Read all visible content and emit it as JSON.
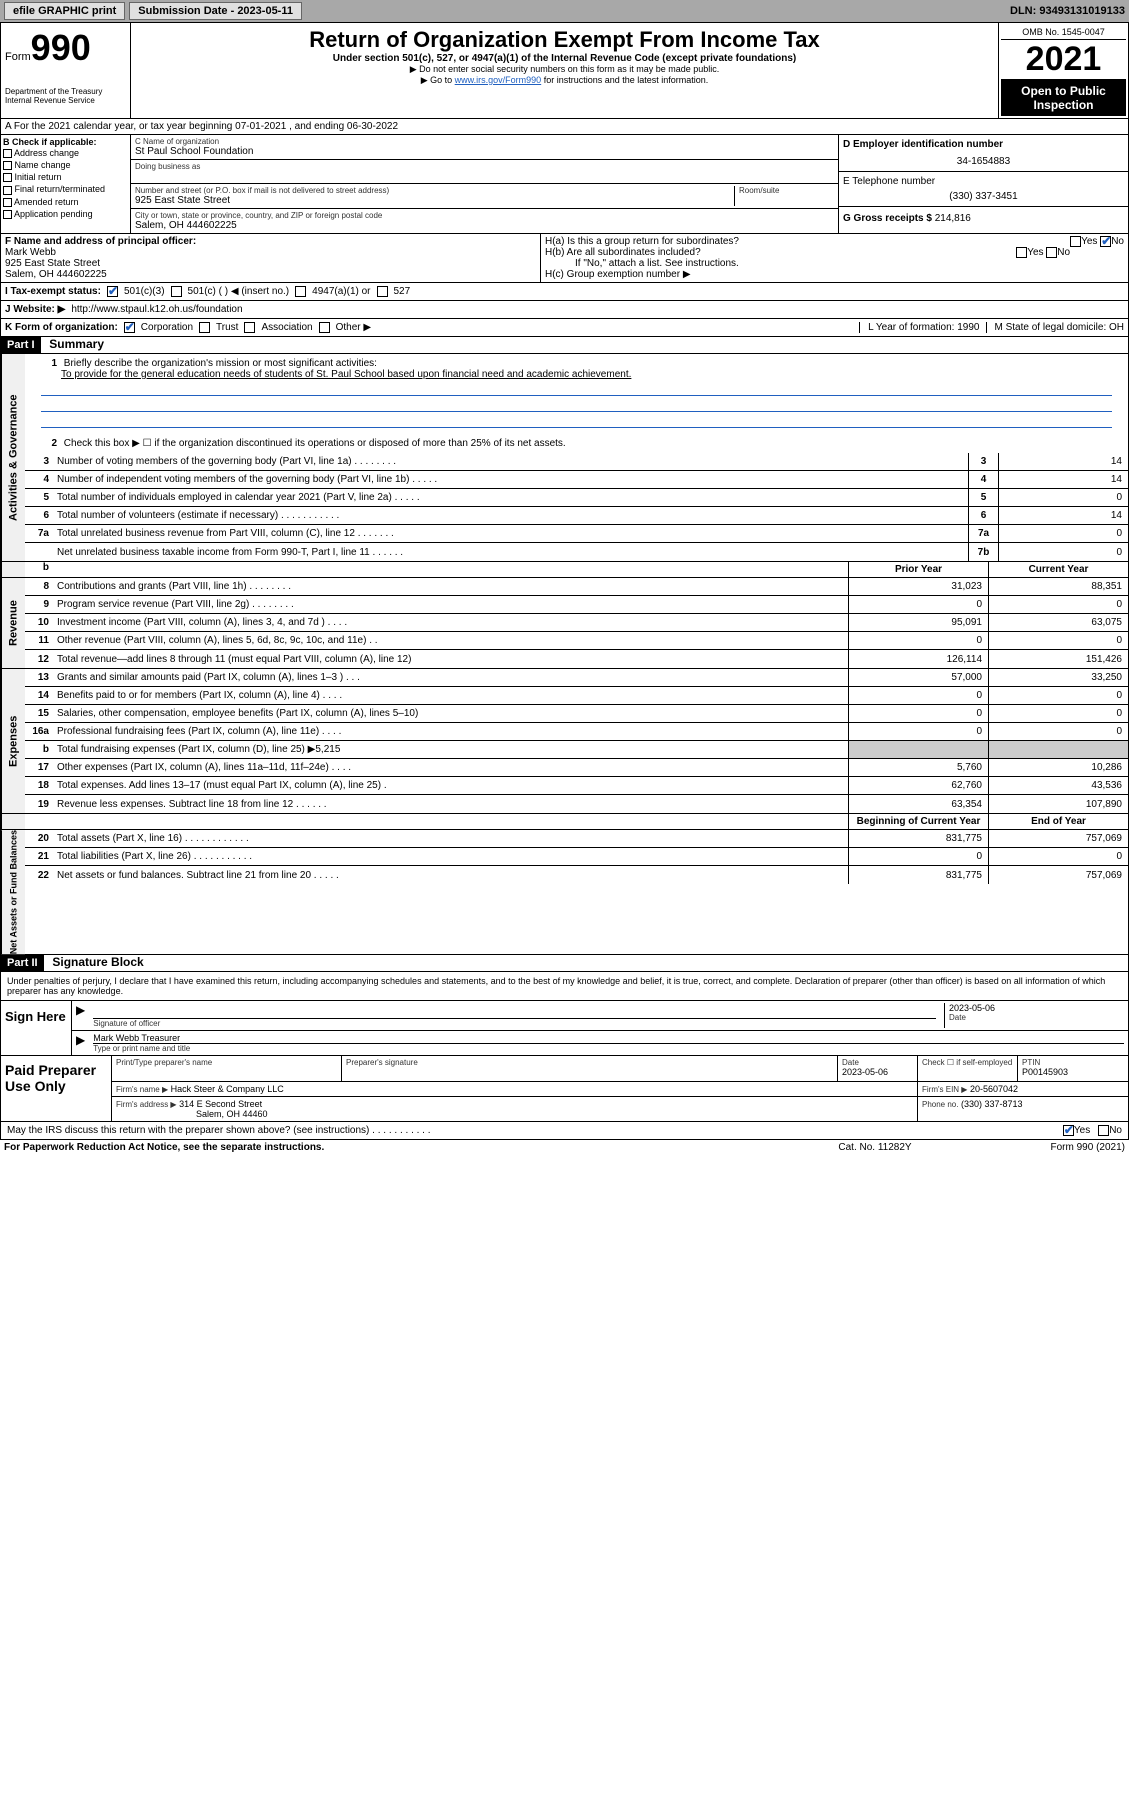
{
  "topbar": {
    "efile": "efile GRAPHIC print",
    "sub_label": "Submission Date - 2023-05-11",
    "dln": "DLN: 93493131019133"
  },
  "header": {
    "form_label": "Form",
    "form_num": "990",
    "dept": "Department of the Treasury\nInternal Revenue Service",
    "title": "Return of Organization Exempt From Income Tax",
    "subtitle": "Under section 501(c), 527, or 4947(a)(1) of the Internal Revenue Code (except private foundations)",
    "instr1": "▶ Do not enter social security numbers on this form as it may be made public.",
    "instr2_pre": "▶ Go to ",
    "instr2_link": "www.irs.gov/Form990",
    "instr2_post": " for instructions and the latest information.",
    "omb": "OMB No. 1545-0047",
    "year": "2021",
    "open_pub": "Open to Public Inspection"
  },
  "row_a": "A For the 2021 calendar year, or tax year beginning 07-01-2021   , and ending 06-30-2022",
  "section_b": {
    "b_label": "B Check if applicable:",
    "checks": [
      "Address change",
      "Name change",
      "Initial return",
      "Final return/terminated",
      "Amended return",
      "Application pending"
    ],
    "c_label": "C Name of organization",
    "c_name": "St Paul School Foundation",
    "dba_label": "Doing business as",
    "street_label": "Number and street (or P.O. box if mail is not delivered to street address)",
    "street": "925 East State Street",
    "room_label": "Room/suite",
    "city_label": "City or town, state or province, country, and ZIP or foreign postal code",
    "city": "Salem, OH  444602225",
    "d_label": "D Employer identification number",
    "d_val": "34-1654883",
    "e_label": "E Telephone number",
    "e_val": "(330) 337-3451",
    "g_label": "G Gross receipts $",
    "g_val": "214,816"
  },
  "section_fh": {
    "f_label": "F Name and address of principal officer:",
    "f_name": "Mark Webb",
    "f_addr1": "925 East State Street",
    "f_addr2": "Salem, OH  444602225",
    "ha": "H(a)  Is this a group return for subordinates?",
    "hb": "H(b)  Are all subordinates included?",
    "hb_note": "If \"No,\" attach a list. See instructions.",
    "hc": "H(c)  Group exemption number ▶",
    "yes": "Yes",
    "no": "No"
  },
  "row_i": {
    "label": "I   Tax-exempt status:",
    "o1": "501(c)(3)",
    "o2": "501(c) (  ) ◀ (insert no.)",
    "o3": "4947(a)(1) or",
    "o4": "527"
  },
  "row_j": {
    "label": "J   Website: ▶",
    "val": "http://www.stpaul.k12.oh.us/foundation"
  },
  "row_k": {
    "label": "K Form of organization:",
    "o1": "Corporation",
    "o2": "Trust",
    "o3": "Association",
    "o4": "Other ▶",
    "l": "L Year of formation: 1990",
    "m": "M State of legal domicile: OH"
  },
  "part1": {
    "hdr": "Part I",
    "title": "Summary",
    "tab_gov": "Activities & Governance",
    "tab_rev": "Revenue",
    "tab_exp": "Expenses",
    "tab_net": "Net Assets or Fund Balances",
    "l1": "Briefly describe the organization's mission or most significant activities:",
    "l1_val": "To provide for the general education needs of students of St. Paul School based upon financial need and academic achievement.",
    "l2": "Check this box ▶ ☐  if the organization discontinued its operations or disposed of more than 25% of its net assets.",
    "lines_gov": [
      {
        "n": "3",
        "t": "Number of voting members of the governing body (Part VI, line 1a)   .   .   .   .   .   .   .   .",
        "b": "3",
        "v": "14"
      },
      {
        "n": "4",
        "t": "Number of independent voting members of the governing body (Part VI, line 1b)   .   .   .   .   .",
        "b": "4",
        "v": "14"
      },
      {
        "n": "5",
        "t": "Total number of individuals employed in calendar year 2021 (Part V, line 2a)   .   .   .   .   .",
        "b": "5",
        "v": "0"
      },
      {
        "n": "6",
        "t": "Total number of volunteers (estimate if necessary)   .   .   .   .   .   .   .   .   .   .   .",
        "b": "6",
        "v": "14"
      },
      {
        "n": "7a",
        "t": "Total unrelated business revenue from Part VIII, column (C), line 12   .   .   .   .   .   .   .",
        "b": "7a",
        "v": "0"
      },
      {
        "n": "",
        "t": "Net unrelated business taxable income from Form 990-T, Part I, line 11   .   .   .   .   .   .",
        "b": "7b",
        "v": "0"
      }
    ],
    "hdr_prior": "Prior Year",
    "hdr_curr": "Current Year",
    "lines_rev": [
      {
        "n": "8",
        "t": "Contributions and grants (Part VIII, line 1h)   .   .   .   .   .   .   .   .",
        "v1": "31,023",
        "v2": "88,351"
      },
      {
        "n": "9",
        "t": "Program service revenue (Part VIII, line 2g)   .   .   .   .   .   .   .   .",
        "v1": "0",
        "v2": "0"
      },
      {
        "n": "10",
        "t": "Investment income (Part VIII, column (A), lines 3, 4, and 7d )   .   .   .   .",
        "v1": "95,091",
        "v2": "63,075"
      },
      {
        "n": "11",
        "t": "Other revenue (Part VIII, column (A), lines 5, 6d, 8c, 9c, 10c, and 11e)   .   .",
        "v1": "0",
        "v2": "0"
      },
      {
        "n": "12",
        "t": "Total revenue—add lines 8 through 11 (must equal Part VIII, column (A), line 12)",
        "v1": "126,114",
        "v2": "151,426"
      }
    ],
    "lines_exp": [
      {
        "n": "13",
        "t": "Grants and similar amounts paid (Part IX, column (A), lines 1–3 )   .   .   .",
        "v1": "57,000",
        "v2": "33,250"
      },
      {
        "n": "14",
        "t": "Benefits paid to or for members (Part IX, column (A), line 4)   .   .   .   .",
        "v1": "0",
        "v2": "0"
      },
      {
        "n": "15",
        "t": "Salaries, other compensation, employee benefits (Part IX, column (A), lines 5–10)",
        "v1": "0",
        "v2": "0"
      },
      {
        "n": "16a",
        "t": "Professional fundraising fees (Part IX, column (A), line 11e)   .   .   .   .",
        "v1": "0",
        "v2": "0"
      },
      {
        "n": "b",
        "t": "Total fundraising expenses (Part IX, column (D), line 25) ▶5,215",
        "v1": "",
        "v2": "",
        "gray": true
      },
      {
        "n": "17",
        "t": "Other expenses (Part IX, column (A), lines 11a–11d, 11f–24e)   .   .   .   .",
        "v1": "5,760",
        "v2": "10,286"
      },
      {
        "n": "18",
        "t": "Total expenses. Add lines 13–17 (must equal Part IX, column (A), line 25)   .",
        "v1": "62,760",
        "v2": "43,536"
      },
      {
        "n": "19",
        "t": "Revenue less expenses. Subtract line 18 from line 12   .   .   .   .   .   .",
        "v1": "63,354",
        "v2": "107,890"
      }
    ],
    "hdr_beg": "Beginning of Current Year",
    "hdr_end": "End of Year",
    "lines_net": [
      {
        "n": "20",
        "t": "Total assets (Part X, line 16)   .   .   .   .   .   .   .   .   .   .   .   .",
        "v1": "831,775",
        "v2": "757,069"
      },
      {
        "n": "21",
        "t": "Total liabilities (Part X, line 26)   .   .   .   .   .   .   .   .   .   .   .",
        "v1": "0",
        "v2": "0"
      },
      {
        "n": "22",
        "t": "Net assets or fund balances. Subtract line 21 from line 20   .   .   .   .   .",
        "v1": "831,775",
        "v2": "757,069"
      }
    ]
  },
  "part2": {
    "hdr": "Part II",
    "title": "Signature Block",
    "decl": "Under penalties of perjury, I declare that I have examined this return, including accompanying schedules and statements, and to the best of my knowledge and belief, it is true, correct, and complete. Declaration of preparer (other than officer) is based on all information of which preparer has any knowledge.",
    "sign_here": "Sign Here",
    "sig_officer": "Signature of officer",
    "sig_date_lbl": "Date",
    "sig_date": "2023-05-06",
    "officer_name": "Mark Webb  Treasurer",
    "officer_lbl": "Type or print name and title",
    "paid": "Paid Preparer Use Only",
    "prep_name_lbl": "Print/Type preparer's name",
    "prep_sig_lbl": "Preparer's signature",
    "prep_date_lbl": "Date",
    "prep_date": "2023-05-06",
    "check_lbl": "Check ☐ if self-employed",
    "ptin_lbl": "PTIN",
    "ptin": "P00145903",
    "firm_name_lbl": "Firm's name     ▶",
    "firm_name": "Hack Steer & Company LLC",
    "firm_ein_lbl": "Firm's EIN ▶",
    "firm_ein": "20-5607042",
    "firm_addr_lbl": "Firm's address ▶",
    "firm_addr1": "314 E Second Street",
    "firm_addr2": "Salem, OH  44460",
    "phone_lbl": "Phone no.",
    "phone": "(330) 337-8713",
    "may_irs": "May the IRS discuss this return with the preparer shown above? (see instructions)   .   .   .   .   .   .   .   .   .   .   .",
    "yes": "Yes",
    "no": "No"
  },
  "footer": {
    "f1": "For Paperwork Reduction Act Notice, see the separate instructions.",
    "f2": "Cat. No. 11282Y",
    "f3": "Form 990 (2021)"
  }
}
